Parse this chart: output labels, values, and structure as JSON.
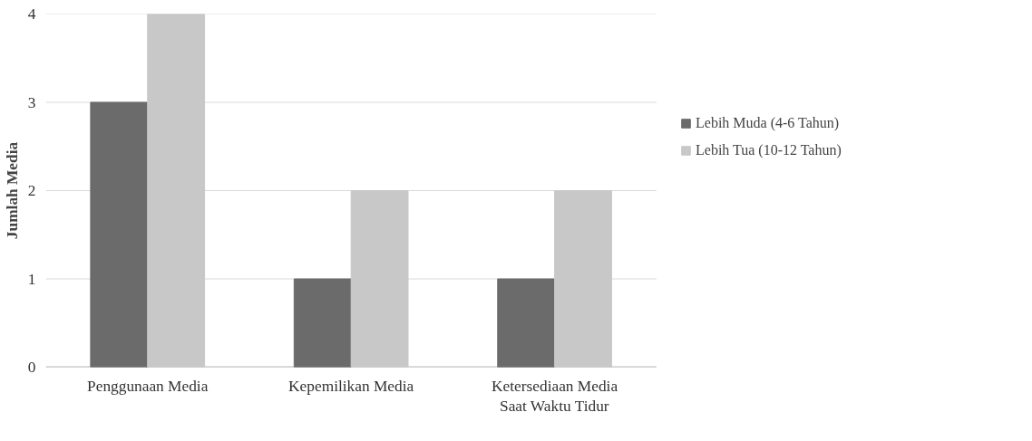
{
  "chart_data": {
    "type": "bar",
    "ylabel": "Jumlah Media",
    "categories": [
      "Penggunaan Media",
      "Kepemilikan Media",
      "Ketersediaan Media\nSaat Waktu Tidur"
    ],
    "series": [
      {
        "name": "Lebih Muda (4-6 Tahun)",
        "color": "#6b6b6b",
        "values": [
          3,
          1,
          1
        ]
      },
      {
        "name": "Lebih Tua (10-12 Tahun)",
        "color": "#c8c8c8",
        "values": [
          4,
          2,
          2
        ]
      }
    ],
    "ylim": [
      0,
      4
    ],
    "yticks": [
      0,
      1,
      2,
      3,
      4
    ],
    "grid": "y",
    "legend": "right"
  }
}
